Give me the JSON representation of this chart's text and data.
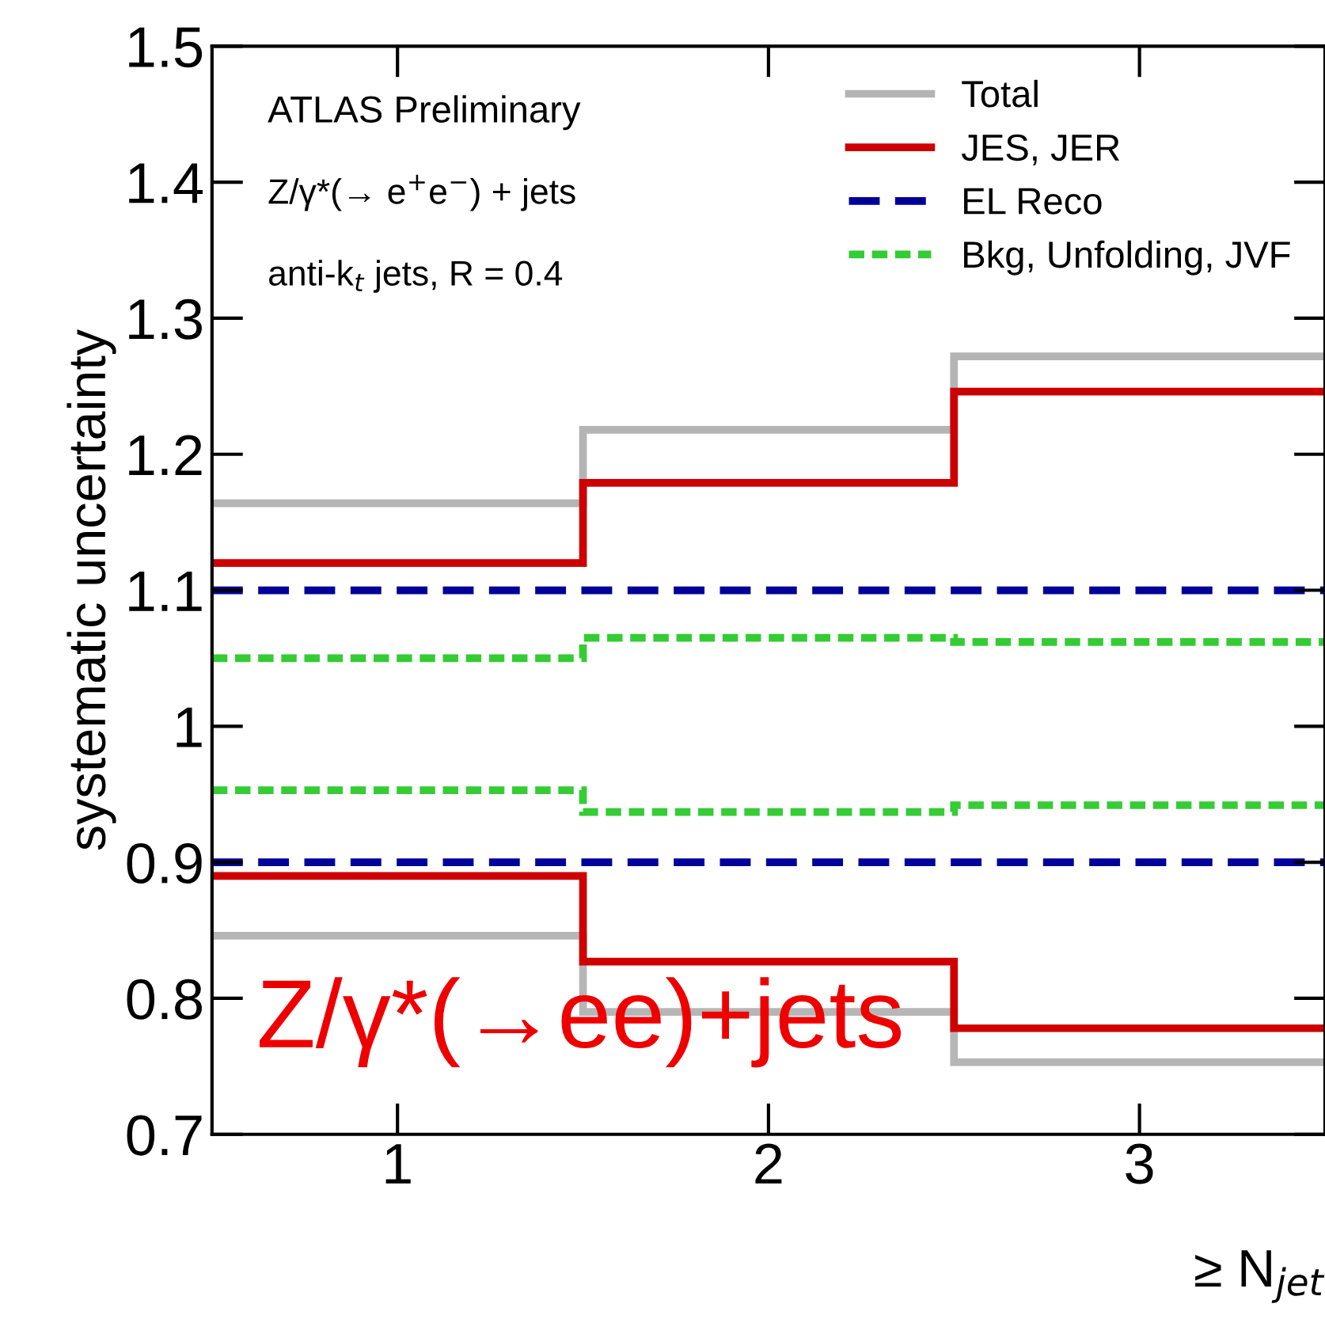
{
  "chart_data": {
    "type": "histogram",
    "ylabel": "systematic uncertainty",
    "xlabel": "≥ N$_{jet}$",
    "bins": [
      0.5,
      1.5,
      2.5,
      3.5
    ],
    "xlim": [
      0.5,
      3.5
    ],
    "xticks": [
      1,
      2,
      3
    ],
    "ylim": [
      0.7,
      1.5
    ],
    "yticks": [
      0.7,
      0.8,
      0.9,
      1,
      1.1,
      1.2,
      1.3,
      1.4,
      1.5
    ],
    "grid": false,
    "legend": "top right",
    "series": [
      {
        "name": "Total",
        "color": "#b4b4b4",
        "line_style": "solid",
        "values": [
          1.164,
          1.218,
          1.272
        ]
      },
      {
        "name": "JES, JER",
        "color": "#cc0000",
        "line_style": "solid",
        "values": [
          1.12,
          1.179,
          1.246
        ]
      },
      {
        "name": "EL Reco",
        "color": "#000099",
        "line_style": "dashed",
        "values": [
          1.1,
          1.1,
          1.1
        ]
      },
      {
        "name": "Bkg, Unfolding, JVF",
        "color": "#33cc33",
        "line_style": "dotted",
        "values": [
          1.05,
          1.065,
          1.062
        ]
      },
      {
        "color": "#b6b6b6",
        "line_style": "solid",
        "values": [
          0.846,
          0.79,
          0.753
        ]
      },
      {
        "color": "#ce0000",
        "line_style": "solid",
        "values": [
          0.89,
          0.827,
          0.778
        ]
      },
      {
        "color": "#00009b",
        "line_style": "dashed",
        "values": [
          0.9,
          0.9,
          0.9
        ]
      },
      {
        "color": "#35cc35",
        "line_style": "dotted",
        "values": [
          0.953,
          0.937,
          0.942
        ]
      }
    ],
    "annotations": [
      "ATLAS Preliminary",
      "Z/γ*(→ e$^{+}$e$^{−}$) + jets",
      "anti-k$_{t}$ jets, R = 0.4",
      "Z/γ*(→ee)+jets"
    ]
  }
}
